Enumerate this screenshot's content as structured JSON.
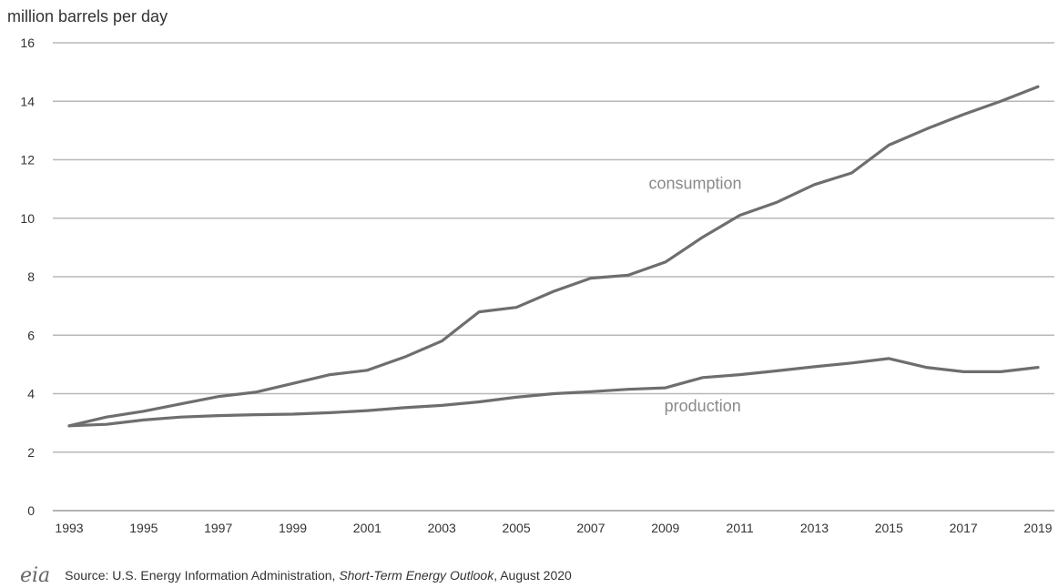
{
  "chart_data": {
    "type": "line",
    "ylabel": "million barrels per day",
    "ylim": [
      0,
      16
    ],
    "yticks": [
      "0",
      "2",
      "4",
      "6",
      "8",
      "10",
      "12",
      "14",
      "16"
    ],
    "xticks": [
      "1993",
      "1995",
      "1997",
      "1999",
      "2001",
      "2003",
      "2005",
      "2007",
      "2009",
      "2011",
      "2013",
      "2015",
      "2017",
      "2019"
    ],
    "x": [
      1993,
      1994,
      1995,
      1996,
      1997,
      1998,
      1999,
      2000,
      2001,
      2002,
      2003,
      2004,
      2005,
      2006,
      2007,
      2008,
      2009,
      2010,
      2011,
      2012,
      2013,
      2014,
      2015,
      2016,
      2017,
      2018,
      2019
    ],
    "grid": true,
    "series": [
      {
        "name": "consumption",
        "values": [
          2.9,
          3.2,
          3.4,
          3.65,
          3.9,
          4.05,
          4.35,
          4.65,
          4.8,
          5.25,
          5.8,
          6.8,
          6.95,
          7.5,
          7.95,
          8.05,
          8.5,
          9.35,
          10.1,
          10.55,
          11.15,
          11.55,
          12.5,
          13.05,
          13.55,
          14.0,
          14.5
        ],
        "color": "#6e6e6e"
      },
      {
        "name": "production",
        "values": [
          2.9,
          2.95,
          3.1,
          3.2,
          3.25,
          3.28,
          3.3,
          3.35,
          3.42,
          3.52,
          3.6,
          3.72,
          3.88,
          4.0,
          4.07,
          4.15,
          4.2,
          4.55,
          4.65,
          4.78,
          4.92,
          5.05,
          5.2,
          4.9,
          4.75,
          4.75,
          4.9
        ],
        "color": "#6e6e6e"
      }
    ],
    "annotations": [
      {
        "text": "consumption",
        "x": 2009.8,
        "y": 11.0
      },
      {
        "text": "production",
        "x": 2010.0,
        "y": 3.4
      }
    ]
  },
  "source": {
    "logo": "eia",
    "prefix": "Source: U.S. Energy Information Administration, ",
    "publication": "Short-Term Energy Outlook",
    "suffix": ", August 2020"
  }
}
